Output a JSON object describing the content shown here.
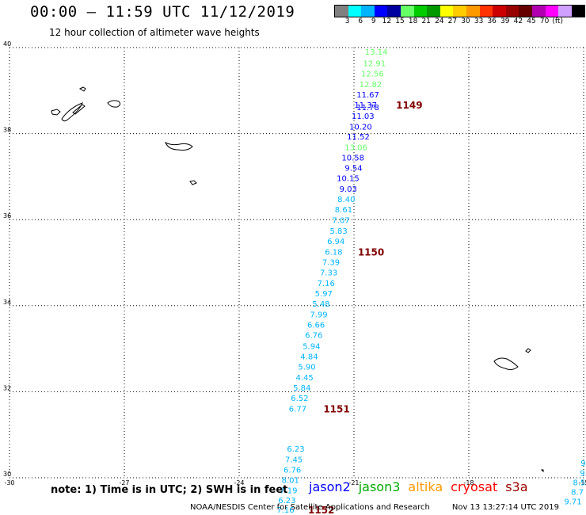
{
  "header": {
    "title": "00:00 – 11:59 UTC 11/12/2019",
    "subtitle": "12 hour collection of altimeter wave heights"
  },
  "legend": {
    "colors": [
      "#808080",
      "#00ffff",
      "#00b4ff",
      "#0000ff",
      "#0000a0",
      "#66ff66",
      "#00cc00",
      "#009900",
      "#ffff00",
      "#ffcc00",
      "#ff9900",
      "#ff3300",
      "#cc0000",
      "#990000",
      "#660000",
      "#b000b0",
      "#ff00ff",
      "#d0a0ff",
      "#000000"
    ],
    "labels": [
      "3",
      "6",
      "9",
      "12",
      "15",
      "18",
      "21",
      "24",
      "27",
      "30",
      "33",
      "36",
      "39",
      "42",
      "45",
      "70",
      "(ft)"
    ]
  },
  "map": {
    "lat_range": [
      30,
      40
    ],
    "lon_range": [
      -30,
      -15
    ],
    "lat_ticks": [
      "40",
      "38",
      "36",
      "34",
      "32",
      "30"
    ],
    "lon_ticks": [
      "-30",
      "-27",
      "-24",
      "-21",
      "-18",
      "-15"
    ],
    "grid": "dotted"
  },
  "observations": [
    {
      "label": "13.14",
      "color": "#66ff66",
      "lon": -20.12,
      "lat": 39.91
    },
    {
      "label": "12.91",
      "color": "#66ff66",
      "lon": -20.17,
      "lat": 39.64
    },
    {
      "label": "12.56",
      "color": "#66ff66",
      "lon": -20.22,
      "lat": 39.4
    },
    {
      "label": "12.82",
      "color": "#66ff66",
      "lon": -20.27,
      "lat": 39.15
    },
    {
      "label": "11.67",
      "color": "#0000ff",
      "lon": -20.34,
      "lat": 38.91
    },
    {
      "label": "11.37",
      "color": "#0000ff",
      "lon": -20.4,
      "lat": 38.67
    },
    {
      "label": "11.78",
      "color": "#0000ff",
      "lon": -20.34,
      "lat": 38.62
    },
    {
      "label": "11.03",
      "color": "#0000ff",
      "lon": -20.47,
      "lat": 38.42
    },
    {
      "label": "10.20",
      "color": "#0000ff",
      "lon": -20.53,
      "lat": 38.17
    },
    {
      "label": "11.52",
      "color": "#0000ff",
      "lon": -20.59,
      "lat": 37.94
    },
    {
      "label": "13.06",
      "color": "#66ff66",
      "lon": -20.65,
      "lat": 37.69
    },
    {
      "label": "10.58",
      "color": "#0000ff",
      "lon": -20.73,
      "lat": 37.45
    },
    {
      "label": "9.54",
      "color": "#0000ff",
      "lon": -20.78,
      "lat": 37.21
    },
    {
      "label": "10.15",
      "color": "#0000ff",
      "lon": -20.86,
      "lat": 36.97
    },
    {
      "label": "9.03",
      "color": "#0000ff",
      "lon": -20.92,
      "lat": 36.72
    },
    {
      "label": "8.40",
      "color": "#00b4ff",
      "lon": -20.97,
      "lat": 36.48
    },
    {
      "label": "8.61",
      "color": "#00b4ff",
      "lon": -21.04,
      "lat": 36.24
    },
    {
      "label": "7.07",
      "color": "#00b4ff",
      "lon": -21.11,
      "lat": 35.99
    },
    {
      "label": "5.83",
      "color": "#00b4ff",
      "lon": -21.17,
      "lat": 35.75
    },
    {
      "label": "6.94",
      "color": "#00b4ff",
      "lon": -21.24,
      "lat": 35.51
    },
    {
      "label": "6.18",
      "color": "#00b4ff",
      "lon": -21.3,
      "lat": 35.26
    },
    {
      "label": "7.39",
      "color": "#00b4ff",
      "lon": -21.37,
      "lat": 35.02
    },
    {
      "label": "7.33",
      "color": "#00b4ff",
      "lon": -21.43,
      "lat": 34.78
    },
    {
      "label": "7.16",
      "color": "#00b4ff",
      "lon": -21.5,
      "lat": 34.53
    },
    {
      "label": "5.97",
      "color": "#00b4ff",
      "lon": -21.56,
      "lat": 34.29
    },
    {
      "label": "5.48",
      "color": "#00b4ff",
      "lon": -21.63,
      "lat": 34.05
    },
    {
      "label": "7.99",
      "color": "#00b4ff",
      "lon": -21.69,
      "lat": 33.8
    },
    {
      "label": "6.66",
      "color": "#00b4ff",
      "lon": -21.76,
      "lat": 33.56
    },
    {
      "label": "6.76",
      "color": "#00b4ff",
      "lon": -21.82,
      "lat": 33.32
    },
    {
      "label": "5.94",
      "color": "#00b4ff",
      "lon": -21.88,
      "lat": 33.07
    },
    {
      "label": "4.84",
      "color": "#00b4ff",
      "lon": -21.94,
      "lat": 32.83
    },
    {
      "label": "5.90",
      "color": "#00b4ff",
      "lon": -22.0,
      "lat": 32.59
    },
    {
      "label": "4.45",
      "color": "#00b4ff",
      "lon": -22.06,
      "lat": 32.34
    },
    {
      "label": "5.84",
      "color": "#00b4ff",
      "lon": -22.13,
      "lat": 32.1
    },
    {
      "label": "6.52",
      "color": "#00b4ff",
      "lon": -22.19,
      "lat": 31.86
    },
    {
      "label": "6.77",
      "color": "#00b4ff",
      "lon": -22.24,
      "lat": 31.61
    },
    {
      "label": "6.23",
      "color": "#00b4ff",
      "lon": -22.29,
      "lat": 30.68
    },
    {
      "label": "7.45",
      "color": "#00b4ff",
      "lon": -22.34,
      "lat": 30.43
    },
    {
      "label": "6.76",
      "color": "#00b4ff",
      "lon": -22.38,
      "lat": 30.19
    },
    {
      "label": "8.01",
      "color": "#00b4ff",
      "lon": -22.43,
      "lat": 29.95
    },
    {
      "label": "7.19",
      "color": "#00b4ff",
      "lon": -22.48,
      "lat": 29.71
    },
    {
      "label": "6.23",
      "color": "#00b4ff",
      "lon": -22.52,
      "lat": 29.48
    },
    {
      "label": "7.16",
      "color": "#00b4ff",
      "lon": -22.56,
      "lat": 29.26
    },
    {
      "label": "9.",
      "color": "#00b4ff",
      "lon": -14.88,
      "lat": 30.35
    },
    {
      "label": "9.",
      "color": "#00b4ff",
      "lon": -14.9,
      "lat": 30.12
    },
    {
      "label": "8.5",
      "color": "#00b4ff",
      "lon": -14.95,
      "lat": 29.9
    },
    {
      "label": "8.7",
      "color": "#00b4ff",
      "lon": -15.0,
      "lat": 29.68
    },
    {
      "label": "9.71",
      "color": "#00b4ff",
      "lon": -15.05,
      "lat": 29.46
    }
  ],
  "pass_labels": [
    {
      "label": "1149",
      "lon": -19.9,
      "lat": 38.67
    },
    {
      "label": "1150",
      "lon": -20.9,
      "lat": 35.26
    },
    {
      "label": "1151",
      "lon": -21.8,
      "lat": 31.61
    },
    {
      "label": "1152",
      "lon": -22.2,
      "lat": 29.26
    }
  ],
  "footer": {
    "note": "note: 1) Time is in UTC; 2) SWH is in feet",
    "missions": [
      {
        "name": "jason2",
        "color": "#0000ff"
      },
      {
        "name": "jason3",
        "color": "#00aa00"
      },
      {
        "name": "altika",
        "color": "#ff9900"
      },
      {
        "name": "cryosat",
        "color": "#ff0000"
      },
      {
        "name": "s3a",
        "color": "#990000"
      }
    ],
    "credit": "NOAA/NESDIS Center for Satellite Applications and Research",
    "timestamp": "Nov 13 13:27:14 UTC 2019"
  }
}
